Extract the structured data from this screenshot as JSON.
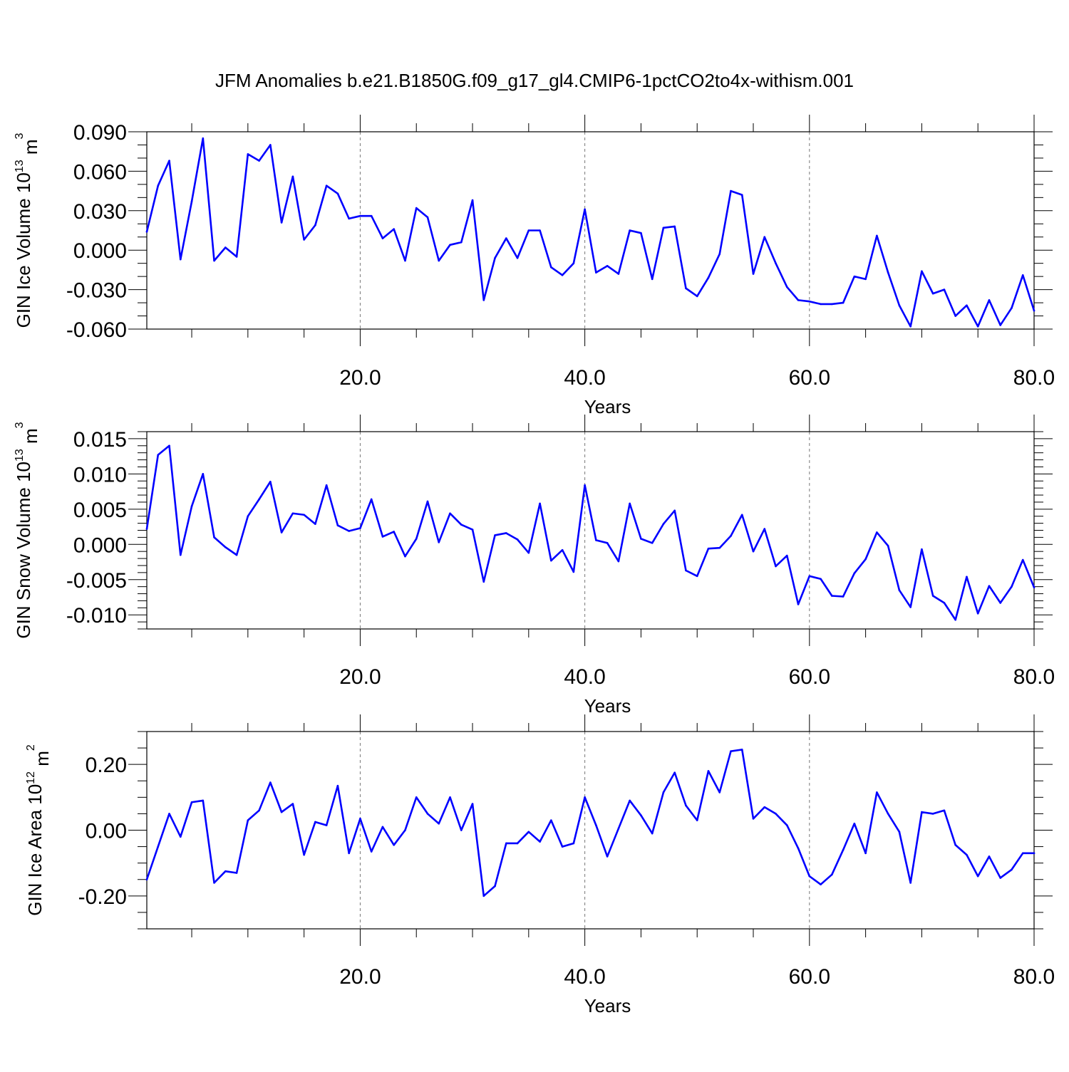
{
  "figure": {
    "title": "JFM Anomalies b.e21.B1850G.f09_g17_gl4.CMIP6-1pctCO2to4x-withism.001"
  },
  "chart_data": [
    {
      "type": "line",
      "title": "",
      "xlabel": "Years",
      "ylabel": {
        "base": "GIN Ice Volume 10",
        "exponent": "13",
        "unit": " m",
        "unit_exponent": "3"
      },
      "xlim": [
        1,
        80
      ],
      "ylim": [
        -0.06,
        0.09
      ],
      "xticks": [
        20,
        40,
        60,
        80
      ],
      "xtick_labels": [
        "20.0",
        "40.0",
        "60.0",
        "80.0"
      ],
      "yticks": [
        -0.06,
        -0.03,
        0.0,
        0.03,
        0.06,
        0.09
      ],
      "ytick_labels": [
        "-0.060",
        "-0.030",
        "0.000",
        "0.030",
        "0.060",
        "0.090"
      ],
      "x_minor_step": 5,
      "y_minor_step": 0.01,
      "vertical_reference_lines": [
        20,
        40,
        60
      ],
      "series_color": "#0000ff",
      "x": [
        1,
        2,
        3,
        4,
        5,
        6,
        7,
        8,
        9,
        10,
        11,
        12,
        13,
        14,
        15,
        16,
        17,
        18,
        19,
        20,
        21,
        22,
        23,
        24,
        25,
        26,
        27,
        28,
        29,
        30,
        31,
        32,
        33,
        34,
        35,
        36,
        37,
        38,
        39,
        40,
        41,
        42,
        43,
        44,
        45,
        46,
        47,
        48,
        49,
        50,
        51,
        52,
        53,
        54,
        55,
        56,
        57,
        58,
        59,
        60,
        61,
        62,
        63,
        64,
        65,
        66,
        67,
        68,
        69,
        70,
        71,
        72,
        73,
        74,
        75,
        76,
        77,
        78,
        79,
        80
      ],
      "values": [
        0.014,
        0.049,
        0.068,
        -0.007,
        0.037,
        0.085,
        -0.008,
        0.002,
        -0.005,
        0.073,
        0.068,
        0.08,
        0.021,
        0.056,
        0.008,
        0.019,
        0.049,
        0.043,
        0.024,
        0.026,
        0.026,
        0.009,
        0.016,
        -0.008,
        0.032,
        0.025,
        -0.008,
        0.004,
        0.006,
        0.038,
        -0.038,
        -0.006,
        0.009,
        -0.006,
        0.015,
        0.015,
        -0.013,
        -0.019,
        -0.01,
        0.031,
        -0.017,
        -0.012,
        -0.018,
        0.015,
        0.013,
        -0.022,
        0.017,
        0.018,
        -0.029,
        -0.035,
        -0.021,
        -0.003,
        0.045,
        0.042,
        -0.018,
        0.01,
        -0.01,
        -0.028,
        -0.038,
        -0.039,
        -0.041,
        -0.041,
        -0.04,
        -0.02,
        -0.022,
        0.011,
        -0.017,
        -0.042,
        -0.058,
        -0.016,
        -0.033,
        -0.03,
        -0.05,
        -0.042,
        -0.058,
        -0.038,
        -0.057,
        -0.044,
        -0.019,
        -0.046
      ]
    },
    {
      "type": "line",
      "title": "",
      "xlabel": "Years",
      "ylabel": {
        "base": "GIN Snow Volume 10",
        "exponent": "13",
        "unit": " m",
        "unit_exponent": "3"
      },
      "xlim": [
        1,
        80
      ],
      "ylim": [
        -0.012,
        0.016
      ],
      "xticks": [
        20,
        40,
        60,
        80
      ],
      "xtick_labels": [
        "20.0",
        "40.0",
        "60.0",
        "80.0"
      ],
      "yticks": [
        -0.01,
        -0.005,
        0.0,
        0.005,
        0.01,
        0.015
      ],
      "ytick_labels": [
        "-0.010",
        "-0.005",
        "0.000",
        "0.005",
        "0.010",
        "0.015"
      ],
      "x_minor_step": 5,
      "y_minor_step": 0.001,
      "vertical_reference_lines": [
        20,
        40,
        60
      ],
      "series_color": "#0000ff",
      "x": [
        1,
        2,
        3,
        4,
        5,
        6,
        7,
        8,
        9,
        10,
        11,
        12,
        13,
        14,
        15,
        16,
        17,
        18,
        19,
        20,
        21,
        22,
        23,
        24,
        25,
        26,
        27,
        28,
        29,
        30,
        31,
        32,
        33,
        34,
        35,
        36,
        37,
        38,
        39,
        40,
        41,
        42,
        43,
        44,
        45,
        46,
        47,
        48,
        49,
        50,
        51,
        52,
        53,
        54,
        55,
        56,
        57,
        58,
        59,
        60,
        61,
        62,
        63,
        64,
        65,
        66,
        67,
        68,
        69,
        70,
        71,
        72,
        73,
        74,
        75,
        76,
        77,
        78,
        79,
        80
      ],
      "values": [
        0.0022,
        0.0127,
        0.014,
        -0.0015,
        0.0054,
        0.01,
        0.001,
        -0.0004,
        -0.0015,
        0.004,
        0.0064,
        0.0089,
        0.0017,
        0.0044,
        0.0042,
        0.0029,
        0.0084,
        0.0027,
        0.0019,
        0.0023,
        0.0064,
        0.0011,
        0.0018,
        -0.0017,
        0.0008,
        0.0061,
        0.0003,
        0.0044,
        0.0028,
        0.0021,
        -0.0053,
        0.0013,
        0.0016,
        0.0007,
        -0.0012,
        0.0058,
        -0.0023,
        -0.0008,
        -0.0039,
        0.0084,
        0.0006,
        0.0002,
        -0.0024,
        0.0058,
        0.0008,
        0.0002,
        0.0029,
        0.0048,
        -0.0037,
        -0.0045,
        -0.0006,
        -0.0005,
        0.0012,
        0.0042,
        -0.001,
        0.0022,
        -0.0031,
        -0.0016,
        -0.0085,
        -0.0045,
        -0.0049,
        -0.0073,
        -0.0074,
        -0.0041,
        -0.0021,
        0.0017,
        -0.0002,
        -0.0065,
        -0.0089,
        -0.0007,
        -0.0073,
        -0.0083,
        -0.0107,
        -0.0046,
        -0.0098,
        -0.0059,
        -0.0083,
        -0.006,
        -0.0022,
        -0.0061
      ]
    },
    {
      "type": "line",
      "title": "",
      "xlabel": "Years",
      "ylabel": {
        "base": "GIN Ice Area 10",
        "exponent": "12",
        "unit": " m",
        "unit_exponent": "2"
      },
      "xlim": [
        1,
        80
      ],
      "ylim": [
        -0.3,
        0.3
      ],
      "xticks": [
        20,
        40,
        60,
        80
      ],
      "xtick_labels": [
        "20.0",
        "40.0",
        "60.0",
        "80.0"
      ],
      "yticks": [
        -0.2,
        0.0,
        0.2
      ],
      "ytick_labels": [
        "-0.20",
        "0.00",
        "0.20"
      ],
      "x_minor_step": 5,
      "y_minor_step": 0.05,
      "vertical_reference_lines": [
        20,
        40,
        60
      ],
      "series_color": "#0000ff",
      "x": [
        1,
        2,
        3,
        4,
        5,
        6,
        7,
        8,
        9,
        10,
        11,
        12,
        13,
        14,
        15,
        16,
        17,
        18,
        19,
        20,
        21,
        22,
        23,
        24,
        25,
        26,
        27,
        28,
        29,
        30,
        31,
        32,
        33,
        34,
        35,
        36,
        37,
        38,
        39,
        40,
        41,
        42,
        43,
        44,
        45,
        46,
        47,
        48,
        49,
        50,
        51,
        52,
        53,
        54,
        55,
        56,
        57,
        58,
        59,
        60,
        61,
        62,
        63,
        64,
        65,
        66,
        67,
        68,
        69,
        70,
        71,
        72,
        73,
        74,
        75,
        76,
        77,
        78,
        79,
        80
      ],
      "values": [
        -0.15,
        -0.05,
        0.05,
        -0.02,
        0.085,
        0.09,
        -0.16,
        -0.125,
        -0.13,
        0.03,
        0.06,
        0.145,
        0.055,
        0.08,
        -0.075,
        0.025,
        0.015,
        0.135,
        -0.07,
        0.035,
        -0.065,
        0.01,
        -0.045,
        0.0,
        0.1,
        0.05,
        0.02,
        0.1,
        0.0,
        0.08,
        -0.2,
        -0.17,
        -0.04,
        -0.04,
        -0.005,
        -0.035,
        0.03,
        -0.05,
        -0.04,
        0.1,
        0.015,
        -0.08,
        0.005,
        0.09,
        0.045,
        -0.01,
        0.115,
        0.175,
        0.075,
        0.03,
        0.18,
        0.115,
        0.24,
        0.245,
        0.035,
        0.07,
        0.05,
        0.015,
        -0.055,
        -0.14,
        -0.165,
        -0.135,
        -0.06,
        0.02,
        -0.07,
        0.115,
        0.05,
        -0.005,
        -0.16,
        0.055,
        0.05,
        0.06,
        -0.045,
        -0.075,
        -0.14,
        -0.08,
        -0.145,
        -0.12,
        -0.07,
        -0.07
      ]
    }
  ]
}
